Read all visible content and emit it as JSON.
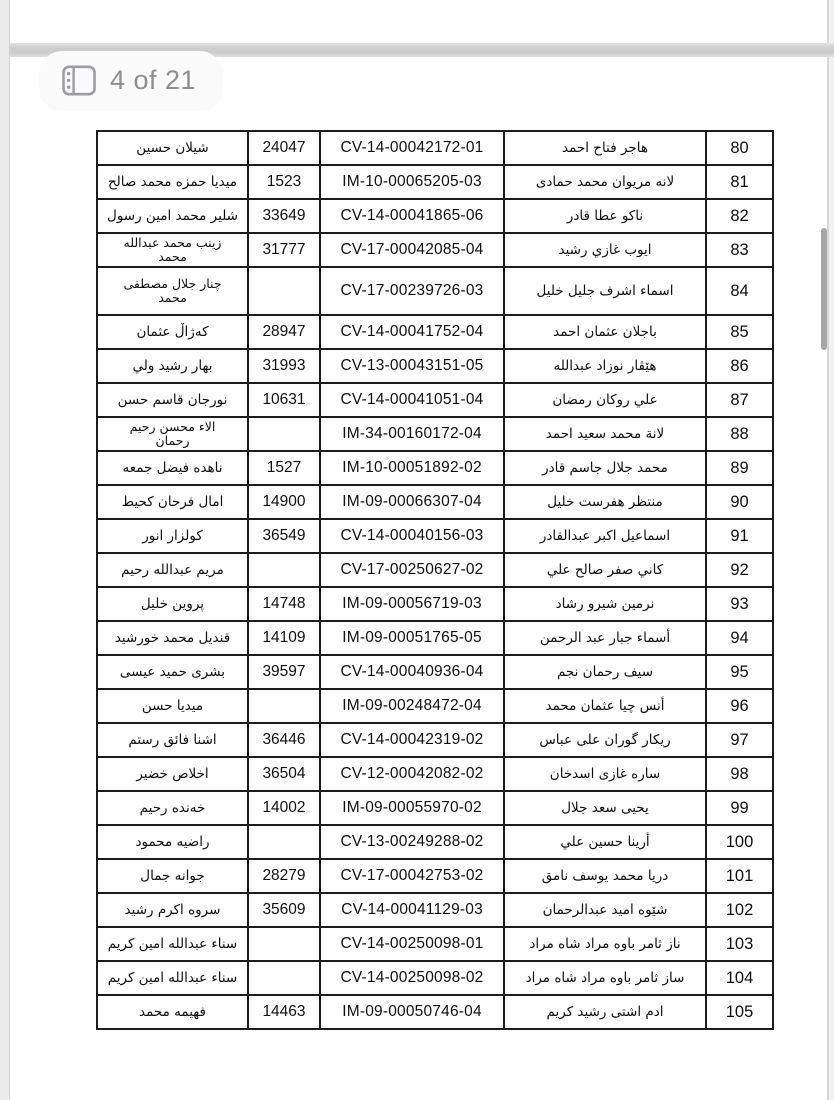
{
  "viewer": {
    "page_indicator": "4 of 21",
    "colors": {
      "pill_background": "#fafafa",
      "pill_text": "#8f8f93",
      "icon_gray": "#9d9da1",
      "separator_band": "#cdcdcd",
      "scrollbar": "#a6a6a6",
      "table_border": "#1c1c1c",
      "page_background": "#ffffff"
    }
  },
  "table": {
    "columns": [
      "name-left",
      "id-number",
      "case-number",
      "name-right",
      "row-number"
    ],
    "rows": [
      {
        "no": "80",
        "name_right": "هاجر فتاح احمد",
        "case": "CV-14-00042172-01",
        "id": "24047",
        "name_left": "شيلان حسين"
      },
      {
        "no": "81",
        "name_right": "لانه مريوان محمد حمادى",
        "case": "IM-10-00065205-03",
        "id": "1523",
        "name_left": "ميديا حمزه محمد صالح"
      },
      {
        "no": "82",
        "name_right": "ناكو عطا قادر",
        "case": "CV-14-00041865-06",
        "id": "33649",
        "name_left": "شلير محمد امين رسول"
      },
      {
        "no": "83",
        "name_right": "ايوب غازي رشيد",
        "case": "CV-17-00042085-04",
        "id": "31777",
        "name_left": "زينب محمد عبدالله\nمحمد"
      },
      {
        "no": "84",
        "name_right": "اسماء اشرف جليل خليل",
        "case": "CV-17-00239726-03",
        "id": "",
        "name_left": "چنار جلال مصطفى\nمحمد",
        "tall": true
      },
      {
        "no": "85",
        "name_right": "باجلان عثمان احمد",
        "case": "CV-14-00041752-04",
        "id": "28947",
        "name_left": "كەژاڵ عثمان"
      },
      {
        "no": "86",
        "name_right": "هێڤار نوزاد عبدالله",
        "case": "CV-13-00043151-05",
        "id": "31993",
        "name_left": "بهار رشيد ولي"
      },
      {
        "no": "87",
        "name_right": "علي روكان رمضان",
        "case": "CV-14-00041051-04",
        "id": "10631",
        "name_left": "نورجان قاسم حسن"
      },
      {
        "no": "88",
        "name_right": "لانة محمد سعيد احمد",
        "case": "IM-34-00160172-04",
        "id": "",
        "name_left": "الاء محسن رحيم\nرحمان"
      },
      {
        "no": "89",
        "name_right": "محمد جلال جاسم قادر",
        "case": "IM-10-00051892-02",
        "id": "1527",
        "name_left": "ناهده فيضل جمعه"
      },
      {
        "no": "90",
        "name_right": "منتظر هفرست خليل",
        "case": "IM-09-00066307-04",
        "id": "14900",
        "name_left": "امال فرحان كحيط"
      },
      {
        "no": "91",
        "name_right": "اسماعيل اكبر عبدالقادر",
        "case": "CV-14-00040156-03",
        "id": "36549",
        "name_left": "كولزار انور"
      },
      {
        "no": "92",
        "name_right": "كاني صفر صالح علي",
        "case": "CV-17-00250627-02",
        "id": "",
        "name_left": "مريم عبدالله رحيم"
      },
      {
        "no": "93",
        "name_right": "نرمين شيرو رشاد",
        "case": "IM-09-00056719-03",
        "id": "14748",
        "name_left": "پروين خليل"
      },
      {
        "no": "94",
        "name_right": "أسماء جبار عبد الرحمن",
        "case": "IM-09-00051765-05",
        "id": "14109",
        "name_left": "قنديل محمد خورشيد"
      },
      {
        "no": "95",
        "name_right": "سيف رحمان نجم",
        "case": "CV-14-00040936-04",
        "id": "39597",
        "name_left": "بشرى حميد عيسى"
      },
      {
        "no": "96",
        "name_right": "أنس چيا عثمان محمد",
        "case": "IM-09-00248472-04",
        "id": "",
        "name_left": "ميديا حسن"
      },
      {
        "no": "97",
        "name_right": "ريكار گوران على عباس",
        "case": "CV-14-00042319-02",
        "id": "36446",
        "name_left": "اشنا فائق رستم"
      },
      {
        "no": "98",
        "name_right": "ساره غازى اسدخان",
        "case": "CV-12-00042082-02",
        "id": "36504",
        "name_left": "اخلاص خضير"
      },
      {
        "no": "99",
        "name_right": "يحيى سعد جلال",
        "case": "IM-09-00055970-02",
        "id": "14002",
        "name_left": "خەنده رحيم"
      },
      {
        "no": "100",
        "name_right": "أرينا حسين علي",
        "case": "CV-13-00249288-02",
        "id": "",
        "name_left": "راضيه محمود"
      },
      {
        "no": "101",
        "name_right": "دريا محمد يوسف نامق",
        "case": "CV-17-00042753-02",
        "id": "28279",
        "name_left": "جوانه جمال"
      },
      {
        "no": "102",
        "name_right": "شێوه اميد عبدالرحمان",
        "case": "CV-14-00041129-03",
        "id": "35609",
        "name_left": "سروه اكرم رشيد"
      },
      {
        "no": "103",
        "name_right": "ناز ثامر باوه مراد شاه مراد",
        "case": "CV-14-00250098-01",
        "id": "",
        "name_left": "سناء عبدالله امين كريم"
      },
      {
        "no": "104",
        "name_right": "ساز ثامر باوه مراد شاه مراد",
        "case": "CV-14-00250098-02",
        "id": "",
        "name_left": "سناء عبدالله امين كريم"
      },
      {
        "no": "105",
        "name_right": "ادم اشتى رشيد كريم",
        "case": "IM-09-00050746-04",
        "id": "14463",
        "name_left": "فهيمه محمد"
      }
    ]
  }
}
